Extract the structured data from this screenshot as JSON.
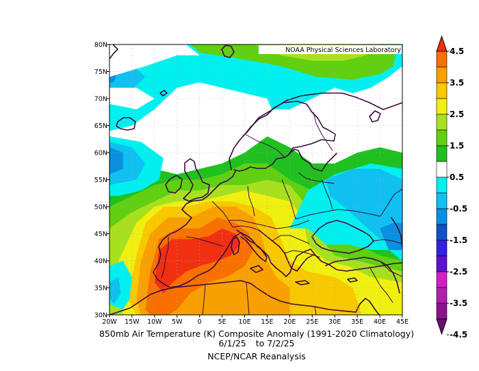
{
  "credit": "NOAA Physical Sciences Laboratory",
  "captions": {
    "line1": "850mb Air Temperature (K) Composite Anomaly (1991-2020 Climatology)",
    "date_from": "6/1/25",
    "date_sep": "to",
    "date_to": "7/2/25",
    "line3": "NCEP/NCAR Reanalysis"
  },
  "map": {
    "lon_range": [
      -20,
      45
    ],
    "lat_range": [
      30,
      80
    ],
    "x_ticks": [
      "20W",
      "15W",
      "10W",
      "5W",
      "0",
      "5E",
      "10E",
      "15E",
      "20E",
      "25E",
      "30E",
      "35E",
      "40E",
      "45E"
    ],
    "y_ticks": [
      "30N",
      "35N",
      "40N",
      "45N",
      "50N",
      "55N",
      "60N",
      "65N",
      "70N",
      "75N",
      "80N"
    ],
    "gridlines": "dotted",
    "coastline_color": "#3a0a3a"
  },
  "colorbar": {
    "labels": [
      "4.5",
      "3.5",
      "2.5",
      "1.5",
      "0.5",
      "-0.5",
      "-1.5",
      "-2.5",
      "-3.5",
      "-4.5"
    ],
    "bins": [
      {
        "range": "<-4.5",
        "color": "#6a1070"
      },
      {
        "range": "-4.5..-4",
        "color": "#8a148a"
      },
      {
        "range": "-4..-3.5",
        "color": "#b020b0"
      },
      {
        "range": "-3.5..-3",
        "color": "#d020c8"
      },
      {
        "range": "-3..-2.5",
        "color": "#6010d0"
      },
      {
        "range": "-2.5..-2",
        "color": "#3020e0"
      },
      {
        "range": "-2..-1.5",
        "color": "#1050c8"
      },
      {
        "range": "-1.5..-1",
        "color": "#0a90e0"
      },
      {
        "range": "-1..-0.5",
        "color": "#10c0f0"
      },
      {
        "range": "-0.5..0",
        "color": "#00f0f0"
      },
      {
        "range": "0..0.5",
        "color": "#ffffff"
      },
      {
        "range": "0.5..1",
        "color": "#20c020"
      },
      {
        "range": "1..1.5",
        "color": "#60d010"
      },
      {
        "range": "1.5..2",
        "color": "#a8e020"
      },
      {
        "range": "2..2.5",
        "color": "#f0f010"
      },
      {
        "range": "2.5..3",
        "color": "#f8c800"
      },
      {
        "range": "3..3.5",
        "color": "#f8a000"
      },
      {
        "range": "3.5..4",
        "color": "#f87000"
      },
      {
        "range": ">4",
        "color": "#f03010"
      }
    ]
  },
  "anomaly_regions": [
    {
      "level": "0.5",
      "color": "#20c020",
      "pts": [
        [
          -20,
          54
        ],
        [
          -15,
          55
        ],
        [
          -10,
          57
        ],
        [
          -5,
          56
        ],
        [
          0,
          57
        ],
        [
          5,
          58
        ],
        [
          10,
          60
        ],
        [
          15,
          63
        ],
        [
          20,
          61
        ],
        [
          25,
          58
        ],
        [
          30,
          58
        ],
        [
          35,
          60
        ],
        [
          40,
          61
        ],
        [
          45,
          60
        ],
        [
          45,
          30
        ],
        [
          -20,
          30
        ]
      ]
    },
    {
      "level": "1",
      "color": "#60d010",
      "pts": [
        [
          -20,
          50
        ],
        [
          -15,
          52
        ],
        [
          -10,
          54
        ],
        [
          -5,
          55
        ],
        [
          0,
          55
        ],
        [
          5,
          56
        ],
        [
          10,
          58
        ],
        [
          15,
          58
        ],
        [
          20,
          55
        ],
        [
          25,
          53
        ],
        [
          30,
          52
        ],
        [
          32,
          47
        ],
        [
          35,
          43
        ],
        [
          40,
          41
        ],
        [
          45,
          40
        ],
        [
          45,
          30
        ],
        [
          -20,
          30
        ]
      ]
    },
    {
      "level": "1.5",
      "color": "#a8e020",
      "pts": [
        [
          -20,
          46
        ],
        [
          -15,
          49
        ],
        [
          -10,
          51
        ],
        [
          -5,
          53
        ],
        [
          0,
          53
        ],
        [
          5,
          54
        ],
        [
          10,
          54
        ],
        [
          15,
          55
        ],
        [
          20,
          54
        ],
        [
          24,
          50
        ],
        [
          26,
          45
        ],
        [
          30,
          41
        ],
        [
          35,
          40
        ],
        [
          40,
          39
        ],
        [
          45,
          38
        ],
        [
          45,
          30
        ],
        [
          -20,
          30
        ]
      ]
    },
    {
      "level": "2",
      "color": "#f0f010",
      "pts": [
        [
          -18,
          40
        ],
        [
          -14,
          47
        ],
        [
          -10,
          50
        ],
        [
          -5,
          51
        ],
        [
          0,
          51
        ],
        [
          5,
          52
        ],
        [
          10,
          53
        ],
        [
          15,
          52
        ],
        [
          20,
          51
        ],
        [
          23,
          48
        ],
        [
          24,
          43
        ],
        [
          28,
          40
        ],
        [
          33,
          39
        ],
        [
          38,
          37
        ],
        [
          45,
          36
        ],
        [
          45,
          30
        ],
        [
          -17,
          30
        ]
      ]
    },
    {
      "level": "2.5",
      "color": "#f8c800",
      "pts": [
        [
          -16,
          33
        ],
        [
          -14,
          41
        ],
        [
          -12,
          47
        ],
        [
          -8,
          50
        ],
        [
          -3,
          50
        ],
        [
          2,
          51
        ],
        [
          7,
          51
        ],
        [
          12,
          50
        ],
        [
          16,
          48
        ],
        [
          18,
          44
        ],
        [
          20,
          40
        ],
        [
          24,
          38
        ],
        [
          30,
          37
        ],
        [
          34,
          35
        ],
        [
          36,
          30
        ],
        [
          -14,
          30
        ]
      ]
    },
    {
      "level": "3",
      "color": "#f8a000",
      "pts": [
        [
          -14,
          33
        ],
        [
          -13,
          40
        ],
        [
          -11,
          45
        ],
        [
          -7,
          48
        ],
        [
          -2,
          48
        ],
        [
          3,
          50
        ],
        [
          8,
          50
        ],
        [
          12,
          48
        ],
        [
          14,
          44
        ],
        [
          15,
          40
        ],
        [
          17,
          37
        ],
        [
          20,
          35
        ],
        [
          20,
          30
        ],
        [
          -13,
          30
        ]
      ]
    },
    {
      "level": "3.5",
      "color": "#f87000",
      "pts": [
        [
          -12,
          31
        ],
        [
          -11,
          38
        ],
        [
          -9,
          44
        ],
        [
          -5,
          46
        ],
        [
          0,
          46
        ],
        [
          4,
          48
        ],
        [
          8,
          47
        ],
        [
          11,
          45
        ],
        [
          12,
          42
        ],
        [
          10,
          39
        ],
        [
          6,
          37
        ],
        [
          2,
          36
        ],
        [
          -2,
          34
        ],
        [
          -5,
          31
        ],
        [
          -7,
          30
        ],
        [
          -11,
          30
        ]
      ]
    },
    {
      "level": "4",
      "color": "#f03010",
      "pts": [
        [
          -10,
          36
        ],
        [
          -9,
          42
        ],
        [
          -6,
          44
        ],
        [
          -2,
          44
        ],
        [
          2,
          44.5
        ],
        [
          5,
          46
        ],
        [
          8,
          45
        ],
        [
          9,
          43
        ],
        [
          7,
          41
        ],
        [
          4,
          40
        ],
        [
          0,
          39
        ],
        [
          -3,
          38
        ],
        [
          -6,
          36
        ],
        [
          -8,
          34
        ]
      ]
    },
    {
      "level": "-0.5",
      "color": "#00f0f0",
      "pts": [
        [
          -20,
          80
        ],
        [
          45,
          80
        ],
        [
          45,
          76
        ],
        [
          42,
          74
        ],
        [
          38,
          72
        ],
        [
          34,
          71
        ],
        [
          30,
          72
        ],
        [
          25,
          70
        ],
        [
          20,
          68
        ],
        [
          16,
          68
        ],
        [
          15,
          70
        ],
        [
          10,
          71
        ],
        [
          5,
          72
        ],
        [
          0,
          73
        ],
        [
          -5,
          72
        ],
        [
          -10,
          68
        ],
        [
          -15,
          65
        ],
        [
          -20,
          64
        ]
      ]
    },
    {
      "level": "-0.5",
      "color": "#00f0f0",
      "pts": [
        [
          -20,
          63
        ],
        [
          -13,
          62
        ],
        [
          -8,
          59
        ],
        [
          -9,
          55
        ],
        [
          -13,
          53
        ],
        [
          -18,
          52
        ],
        [
          -20,
          52
        ]
      ]
    },
    {
      "level": "-0.5",
      "color": "#00f0f0",
      "pts": [
        [
          -17,
          40
        ],
        [
          -15,
          37
        ],
        [
          -15.5,
          33
        ],
        [
          -17,
          31
        ],
        [
          -20,
          32
        ],
        [
          -20,
          39
        ]
      ]
    },
    {
      "level": "-0.5",
      "color": "#00f0f0",
      "pts": [
        [
          20,
          46
        ],
        [
          24,
          53
        ],
        [
          30,
          56
        ],
        [
          38,
          58
        ],
        [
          45,
          57
        ],
        [
          45,
          40
        ],
        [
          42,
          42
        ],
        [
          38,
          42
        ],
        [
          33,
          43
        ],
        [
          28,
          43
        ],
        [
          24,
          46
        ]
      ]
    },
    {
      "level": "-1",
      "color": "#10c0f0",
      "pts": [
        [
          -20,
          79
        ],
        [
          -16,
          77
        ],
        [
          -12,
          74
        ],
        [
          -16,
          71
        ],
        [
          -20,
          70
        ]
      ]
    },
    {
      "level": "-1",
      "color": "#10c0f0",
      "pts": [
        [
          -20,
          62
        ],
        [
          -15,
          61
        ],
        [
          -12,
          58
        ],
        [
          -14,
          55
        ],
        [
          -20,
          54
        ]
      ]
    },
    {
      "level": "-1",
      "color": "#10c0f0",
      "pts": [
        [
          28,
          55
        ],
        [
          34,
          57
        ],
        [
          40,
          57
        ],
        [
          45,
          55
        ],
        [
          45,
          43
        ],
        [
          40,
          44
        ],
        [
          36,
          47
        ],
        [
          32,
          50
        ],
        [
          29,
          52
        ]
      ]
    },
    {
      "level": "-1",
      "color": "#10c0f0",
      "pts": [
        [
          -18,
          37
        ],
        [
          -17.5,
          34
        ],
        [
          -19,
          32
        ],
        [
          -20,
          33
        ],
        [
          -20,
          36
        ]
      ]
    },
    {
      "level": "-1.5",
      "color": "#0a90e0",
      "pts": [
        [
          -20,
          61
        ],
        [
          -17,
          60
        ],
        [
          -17,
          57
        ],
        [
          -20,
          56
        ]
      ]
    },
    {
      "level": "-1.5",
      "color": "#0a90e0",
      "pts": [
        [
          40,
          46
        ],
        [
          43,
          47
        ],
        [
          45,
          47
        ],
        [
          45,
          42
        ],
        [
          42,
          42
        ]
      ]
    },
    {
      "level": "-1.5",
      "color": "#0a90e0",
      "pts": [
        [
          -20,
          77
        ],
        [
          -18,
          76
        ],
        [
          -19,
          73
        ],
        [
          -20,
          73
        ]
      ]
    },
    {
      "level": "1",
      "color": "#60d010",
      "pts": [
        [
          -2,
          80
        ],
        [
          44,
          80
        ],
        [
          43,
          76
        ],
        [
          40,
          74.5
        ],
        [
          34,
          73.5
        ],
        [
          26,
          74
        ],
        [
          18,
          76
        ],
        [
          8,
          77.5
        ],
        [
          0,
          78.5
        ]
      ]
    },
    {
      "level": "1.5",
      "color": "#a8e020",
      "pts": [
        [
          12,
          80
        ],
        [
          40,
          80
        ],
        [
          37,
          78
        ],
        [
          32,
          77
        ],
        [
          25,
          77
        ],
        [
          18,
          78
        ]
      ]
    },
    {
      "level": "2",
      "color": "#f0f010",
      "pts": [
        [
          20,
          80
        ],
        [
          34,
          80
        ],
        [
          31,
          79
        ],
        [
          26,
          78.5
        ],
        [
          22,
          79
        ]
      ]
    },
    {
      "level": "0",
      "color": "#ffffff",
      "pts": [
        [
          -20,
          74
        ],
        [
          -12,
          76
        ],
        [
          -5,
          78
        ],
        [
          0,
          78
        ],
        [
          -3,
          80
        ],
        [
          -20,
          80
        ]
      ]
    },
    {
      "level": "0",
      "color": "#ffffff",
      "pts": [
        [
          -20,
          69
        ],
        [
          -14,
          68
        ],
        [
          -10,
          70
        ],
        [
          -14,
          72
        ],
        [
          -20,
          72
        ]
      ]
    }
  ]
}
